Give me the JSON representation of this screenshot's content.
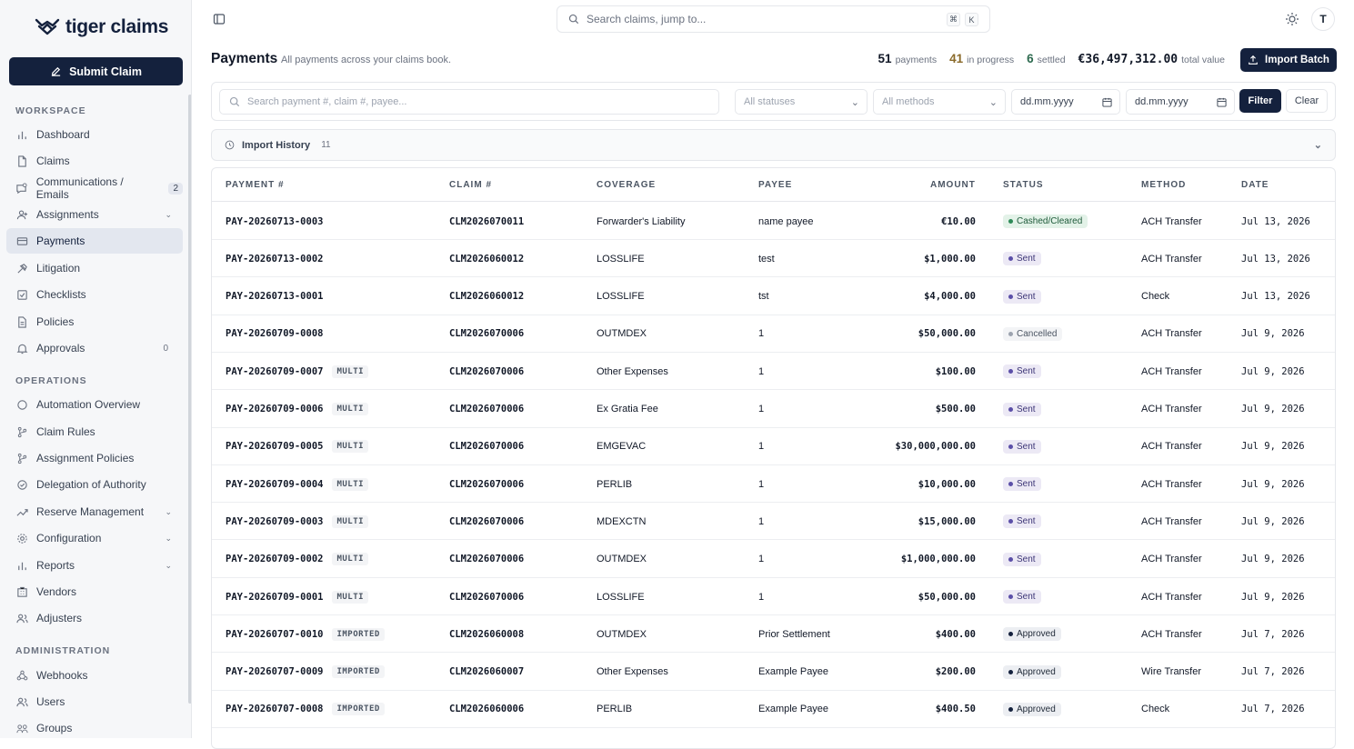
{
  "app": {
    "logo_text": "tiger claims"
  },
  "sidebar": {
    "submit_label": "Submit Claim",
    "sections": {
      "workspace": "WORKSPACE",
      "operations": "OPERATIONS",
      "administration": "ADMINISTRATION"
    },
    "items": [
      {
        "label": "Dashboard"
      },
      {
        "label": "Claims"
      },
      {
        "label": "Communications / Emails",
        "badge": "2"
      },
      {
        "label": "Assignments"
      },
      {
        "label": "Payments"
      },
      {
        "label": "Litigation"
      },
      {
        "label": "Checklists"
      },
      {
        "label": "Policies"
      },
      {
        "label": "Approvals",
        "count": "0"
      },
      {
        "label": "Automation Overview"
      },
      {
        "label": "Claim Rules"
      },
      {
        "label": "Assignment Policies"
      },
      {
        "label": "Delegation of Authority"
      },
      {
        "label": "Reserve Management"
      },
      {
        "label": "Configuration"
      },
      {
        "label": "Reports"
      },
      {
        "label": "Vendors"
      },
      {
        "label": "Adjusters"
      },
      {
        "label": "Webhooks"
      },
      {
        "label": "Users"
      },
      {
        "label": "Groups"
      }
    ]
  },
  "topbar": {
    "search_placeholder": "Search claims, jump to...",
    "kbd1": "⌘",
    "kbd2": "K",
    "avatar_initial": "T"
  },
  "header": {
    "title": "Payments",
    "subtitle": "All payments across your claims book.",
    "stats": {
      "payments_num": "51",
      "payments_label": "payments",
      "progress_num": "41",
      "progress_label": "in progress",
      "settled_num": "6",
      "settled_label": "settled",
      "total_num": "€36,497,312.00",
      "total_label": "total value"
    },
    "import_label": "Import Batch"
  },
  "filters": {
    "search_placeholder": "Search payment #, claim #, payee...",
    "status_placeholder": "All statuses",
    "method_placeholder": "All methods",
    "date_from": "dd.mm.yyyy",
    "date_to": "dd.mm.yyyy",
    "filter_label": "Filter",
    "clear_label": "Clear"
  },
  "import_history": {
    "label": "Import History",
    "count": "11"
  },
  "table": {
    "headers": {
      "payment": "PAYMENT #",
      "claim": "CLAIM #",
      "coverage": "COVERAGE",
      "payee": "PAYEE",
      "amount": "AMOUNT",
      "status": "STATUS",
      "method": "METHOD",
      "date": "DATE"
    },
    "rows": [
      {
        "payment": "PAY-20260713-0003",
        "tag": "",
        "claim": "CLM2026070011",
        "coverage": "Forwarder's Liability",
        "payee": "name payee",
        "amount": "€10.00",
        "status": "Cashed/Cleared",
        "status_kind": "cashed",
        "method": "ACH Transfer",
        "date": "Jul 13, 2026"
      },
      {
        "payment": "PAY-20260713-0002",
        "tag": "",
        "claim": "CLM2026060012",
        "coverage": "LOSSLIFE",
        "payee": "test",
        "amount": "$1,000.00",
        "status": "Sent",
        "status_kind": "sent",
        "method": "ACH Transfer",
        "date": "Jul 13, 2026"
      },
      {
        "payment": "PAY-20260713-0001",
        "tag": "",
        "claim": "CLM2026060012",
        "coverage": "LOSSLIFE",
        "payee": "tst",
        "amount": "$4,000.00",
        "status": "Sent",
        "status_kind": "sent",
        "method": "Check",
        "date": "Jul 13, 2026"
      },
      {
        "payment": "PAY-20260709-0008",
        "tag": "",
        "claim": "CLM2026070006",
        "coverage": "OUTMDEX",
        "payee": "1",
        "amount": "$50,000.00",
        "status": "Cancelled",
        "status_kind": "cancelled",
        "method": "ACH Transfer",
        "date": "Jul 9, 2026"
      },
      {
        "payment": "PAY-20260709-0007",
        "tag": "MULTI",
        "claim": "CLM2026070006",
        "coverage": "Other Expenses",
        "payee": "1",
        "amount": "$100.00",
        "status": "Sent",
        "status_kind": "sent",
        "method": "ACH Transfer",
        "date": "Jul 9, 2026"
      },
      {
        "payment": "PAY-20260709-0006",
        "tag": "MULTI",
        "claim": "CLM2026070006",
        "coverage": "Ex Gratia Fee",
        "payee": "1",
        "amount": "$500.00",
        "status": "Sent",
        "status_kind": "sent",
        "method": "ACH Transfer",
        "date": "Jul 9, 2026"
      },
      {
        "payment": "PAY-20260709-0005",
        "tag": "MULTI",
        "claim": "CLM2026070006",
        "coverage": "EMGEVAC",
        "payee": "1",
        "amount": "$30,000,000.00",
        "status": "Sent",
        "status_kind": "sent",
        "method": "ACH Transfer",
        "date": "Jul 9, 2026"
      },
      {
        "payment": "PAY-20260709-0004",
        "tag": "MULTI",
        "claim": "CLM2026070006",
        "coverage": "PERLIB",
        "payee": "1",
        "amount": "$10,000.00",
        "status": "Sent",
        "status_kind": "sent",
        "method": "ACH Transfer",
        "date": "Jul 9, 2026"
      },
      {
        "payment": "PAY-20260709-0003",
        "tag": "MULTI",
        "claim": "CLM2026070006",
        "coverage": "MDEXCTN",
        "payee": "1",
        "amount": "$15,000.00",
        "status": "Sent",
        "status_kind": "sent",
        "method": "ACH Transfer",
        "date": "Jul 9, 2026"
      },
      {
        "payment": "PAY-20260709-0002",
        "tag": "MULTI",
        "claim": "CLM2026070006",
        "coverage": "OUTMDEX",
        "payee": "1",
        "amount": "$1,000,000.00",
        "status": "Sent",
        "status_kind": "sent",
        "method": "ACH Transfer",
        "date": "Jul 9, 2026"
      },
      {
        "payment": "PAY-20260709-0001",
        "tag": "MULTI",
        "claim": "CLM2026070006",
        "coverage": "LOSSLIFE",
        "payee": "1",
        "amount": "$50,000.00",
        "status": "Sent",
        "status_kind": "sent",
        "method": "ACH Transfer",
        "date": "Jul 9, 2026"
      },
      {
        "payment": "PAY-20260707-0010",
        "tag": "IMPORTED",
        "claim": "CLM2026060008",
        "coverage": "OUTMDEX",
        "payee": "Prior Settlement",
        "amount": "$400.00",
        "status": "Approved",
        "status_kind": "approved",
        "method": "ACH Transfer",
        "date": "Jul 7, 2026"
      },
      {
        "payment": "PAY-20260707-0009",
        "tag": "IMPORTED",
        "claim": "CLM2026060007",
        "coverage": "Other Expenses",
        "payee": "Example Payee",
        "amount": "$200.00",
        "status": "Approved",
        "status_kind": "approved",
        "method": "Wire Transfer",
        "date": "Jul 7, 2026"
      },
      {
        "payment": "PAY-20260707-0008",
        "tag": "IMPORTED",
        "claim": "CLM2026060006",
        "coverage": "PERLIB",
        "payee": "Example Payee",
        "amount": "$400.50",
        "status": "Approved",
        "status_kind": "approved",
        "method": "Check",
        "date": "Jul 7, 2026"
      }
    ]
  },
  "colors": {
    "primary": "#14213d",
    "sidebar_bg": "#f6f7f9",
    "active_bg": "#e3e7ef"
  }
}
